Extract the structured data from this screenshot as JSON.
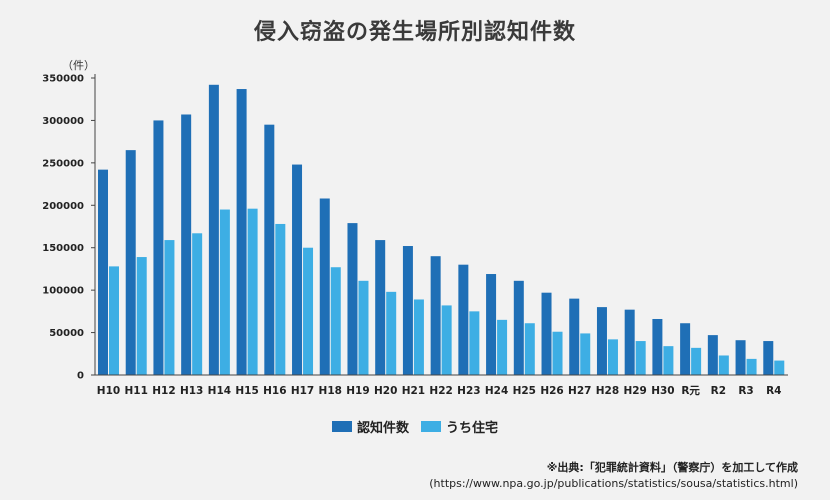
{
  "colors": {
    "series_main": "#1f6fb6",
    "series_sub": "#3daee4",
    "axis": "#444444"
  },
  "chart_data": {
    "type": "bar",
    "title": "侵入窃盗の発生場所別認知件数",
    "y_unit_label": "（件）",
    "ylim": [
      0,
      350000
    ],
    "yticks": [
      0,
      50000,
      100000,
      150000,
      200000,
      250000,
      300000,
      350000
    ],
    "grid": false,
    "legend_position": "bottom-center",
    "categories": [
      "H10",
      "H11",
      "H12",
      "H13",
      "H14",
      "H15",
      "H16",
      "H17",
      "H18",
      "H19",
      "H20",
      "H21",
      "H22",
      "H23",
      "H24",
      "H25",
      "H26",
      "H27",
      "H28",
      "H29",
      "H30",
      "R元",
      "R2",
      "R3",
      "R4"
    ],
    "series": [
      {
        "name": "認知件数",
        "values": [
          242000,
          265000,
          300000,
          307000,
          342000,
          337000,
          295000,
          248000,
          208000,
          179000,
          159000,
          152000,
          140000,
          130000,
          119000,
          111000,
          97000,
          90000,
          80000,
          77000,
          66000,
          61000,
          47000,
          41000,
          40000
        ]
      },
      {
        "name": "うち住宅",
        "values": [
          128000,
          139000,
          159000,
          167000,
          195000,
          196000,
          178000,
          150000,
          127000,
          111000,
          98000,
          89000,
          82000,
          75000,
          65000,
          61000,
          51000,
          49000,
          42000,
          40000,
          34000,
          32000,
          23000,
          19000,
          17000
        ]
      }
    ]
  },
  "source": {
    "title": "※出典:「犯罪統計資料」（警察庁）を加工して作成",
    "url": "(https://www.npa.go.jp/publications/statistics/sousa/statistics.html)"
  }
}
